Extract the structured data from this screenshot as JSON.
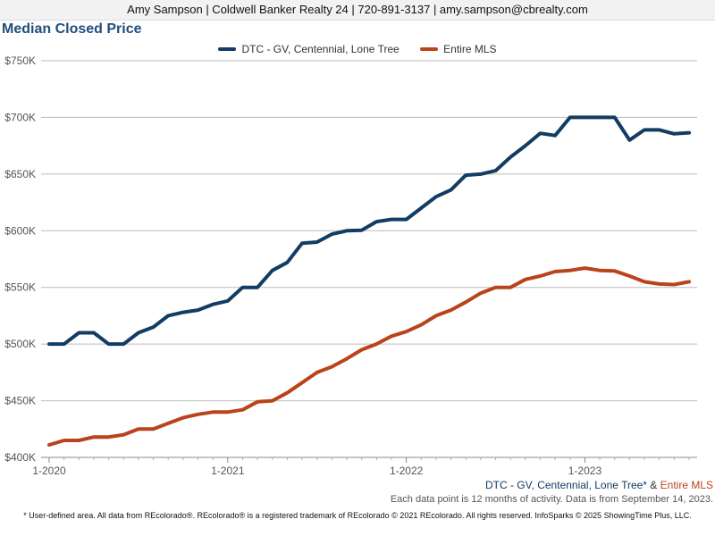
{
  "header": {
    "agent_line": "Amy Sampson | Coldwell Banker Realty 24 | 720-891-3137 | amy.sampson@cbrealty.com"
  },
  "footnotes": {
    "area_label": "DTC - GV, Centennial, Lone Tree*",
    "ampersand": " & ",
    "entire_label": "Entire MLS",
    "data_note": "Each data point is 12 months of activity. Data is from September 14, 2023.",
    "disclaimer": "* User-defined area. All data from REcolorado®. REcolorado® is a registered trademark of REcolorado © 2021 REcolorado. All rights reserved. InfoSparks © 2025 ShowingTime Plus, LLC."
  },
  "colors": {
    "series_dtc": "#123c63",
    "series_mls": "#b9441c",
    "grid": "#bbbbbb"
  },
  "chart_data": {
    "type": "line",
    "title": "Median Closed Price",
    "x": [
      "2020-01",
      "2020-02",
      "2020-03",
      "2020-04",
      "2020-05",
      "2020-06",
      "2020-07",
      "2020-08",
      "2020-09",
      "2020-10",
      "2020-11",
      "2020-12",
      "2021-01",
      "2021-02",
      "2021-03",
      "2021-04",
      "2021-05",
      "2021-06",
      "2021-07",
      "2021-08",
      "2021-09",
      "2021-10",
      "2021-11",
      "2021-12",
      "2022-01",
      "2022-02",
      "2022-03",
      "2022-04",
      "2022-05",
      "2022-06",
      "2022-07",
      "2022-08",
      "2022-09",
      "2022-10",
      "2022-11",
      "2022-12",
      "2023-01",
      "2023-02",
      "2023-03",
      "2023-04",
      "2023-05",
      "2023-06",
      "2023-07",
      "2023-08"
    ],
    "xticks": [
      "1-2020",
      "1-2021",
      "1-2022",
      "1-2023"
    ],
    "xtick_index": [
      0,
      12,
      24,
      36
    ],
    "yticks": [
      "$400K",
      "$450K",
      "$500K",
      "$550K",
      "$600K",
      "$650K",
      "$700K",
      "$750K"
    ],
    "ylim": [
      400000,
      750000
    ],
    "grid": true,
    "legend_position": "top-center",
    "series": [
      {
        "name": "DTC - GV, Centennial, Lone Tree",
        "color": "#123c63",
        "values": [
          500000,
          500000,
          510000,
          510000,
          500000,
          500000,
          510000,
          515000,
          525000,
          528000,
          530000,
          535000,
          538000,
          550000,
          550000,
          565000,
          572000,
          589000,
          590000,
          597000,
          600000,
          600500,
          608000,
          610000,
          610000,
          620000,
          630000,
          636000,
          649000,
          650000,
          653000,
          665000,
          675000,
          686000,
          684000,
          700000,
          700000,
          700000,
          700000,
          680000,
          689000,
          689000,
          685500,
          686500
        ]
      },
      {
        "name": "Entire MLS",
        "color": "#b9441c",
        "values": [
          411000,
          415000,
          415000,
          418000,
          418000,
          420000,
          425000,
          425000,
          430000,
          435000,
          438000,
          440000,
          440000,
          442000,
          449000,
          450000,
          457000,
          466000,
          475000,
          480000,
          487000,
          495000,
          500000,
          507000,
          511000,
          517000,
          525000,
          530000,
          537000,
          545000,
          550000,
          550000,
          557000,
          560000,
          564000,
          565000,
          567000,
          565000,
          564500,
          560000,
          555000,
          553000,
          552500,
          555000
        ]
      }
    ]
  }
}
